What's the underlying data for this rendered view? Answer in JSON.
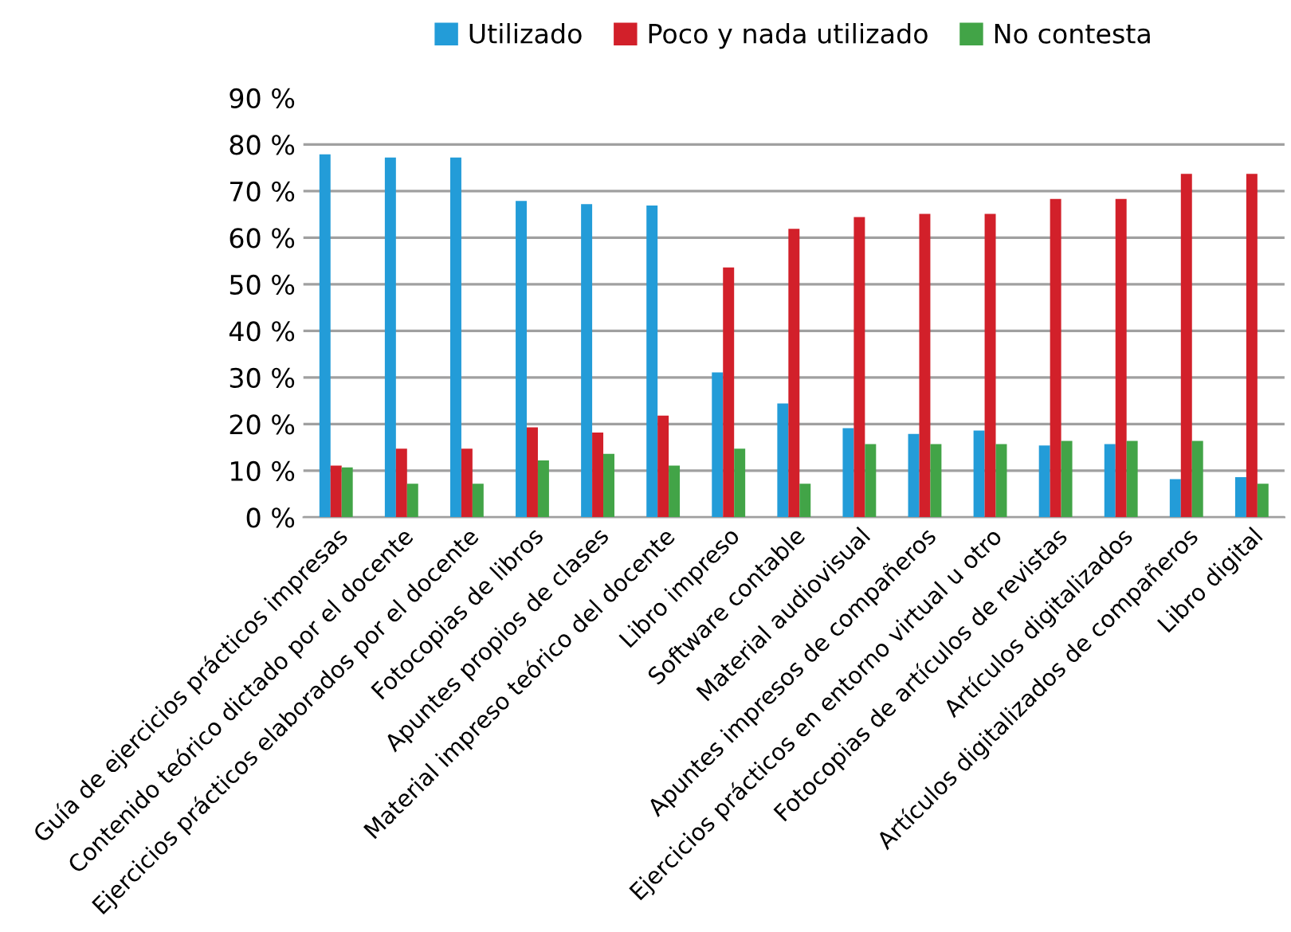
{
  "chart_data": {
    "type": "bar",
    "categories": [
      "Guía de ejercicios prácticos impresas",
      "Contenido teórico dictado por el docente",
      "Ejercicios prácticos elaborados por el docente",
      "Fotocopias de libros",
      "Apuntes propios de clases",
      "Material impreso teórico del docente",
      "Libro impreso",
      "Software contable",
      "Material audiovisual",
      "Apuntes impresos de compañeros",
      "Ejercicios prácticos en entorno virtual u otro",
      "Fotocopias de artículos de revistas",
      "Artículos digitalizados",
      "Artículos digitalizados de compañeros",
      "Libro digital"
    ],
    "series": [
      {
        "name": "Utilizado",
        "color": "#239cd8",
        "values": [
          77.9,
          77.2,
          77.2,
          67.9,
          67.2,
          66.9,
          31.1,
          24.4,
          19.1,
          17.9,
          18.6,
          15.4,
          15.7,
          8.2,
          8.6
        ]
      },
      {
        "name": "Poco y nada utilizado",
        "color": "#d2202a",
        "values": [
          11.1,
          14.7,
          14.7,
          19.3,
          18.2,
          21.8,
          53.6,
          61.9,
          64.4,
          65.1,
          65.1,
          68.3,
          68.3,
          73.7,
          73.7
        ]
      },
      {
        "name": "No contesta",
        "color": "#42a447",
        "values": [
          10.7,
          7.2,
          7.2,
          12.2,
          13.6,
          11.1,
          14.7,
          7.2,
          15.7,
          15.7,
          15.7,
          16.4,
          16.4,
          16.4,
          7.2
        ]
      }
    ],
    "ylim": [
      0,
      90
    ],
    "yticks": [
      {
        "value": 0,
        "label": "0 %"
      },
      {
        "value": 10,
        "label": "10 %"
      },
      {
        "value": 20,
        "label": "20 %"
      },
      {
        "value": 30,
        "label": "30 %"
      },
      {
        "value": 40,
        "label": "40 %"
      },
      {
        "value": 50,
        "label": "50 %"
      },
      {
        "value": 60,
        "label": "60 %"
      },
      {
        "value": 70,
        "label": "70 %"
      },
      {
        "value": 80,
        "label": "80 %"
      },
      {
        "value": 90,
        "label": "90 %"
      }
    ],
    "grid": "y",
    "legend": "top"
  }
}
